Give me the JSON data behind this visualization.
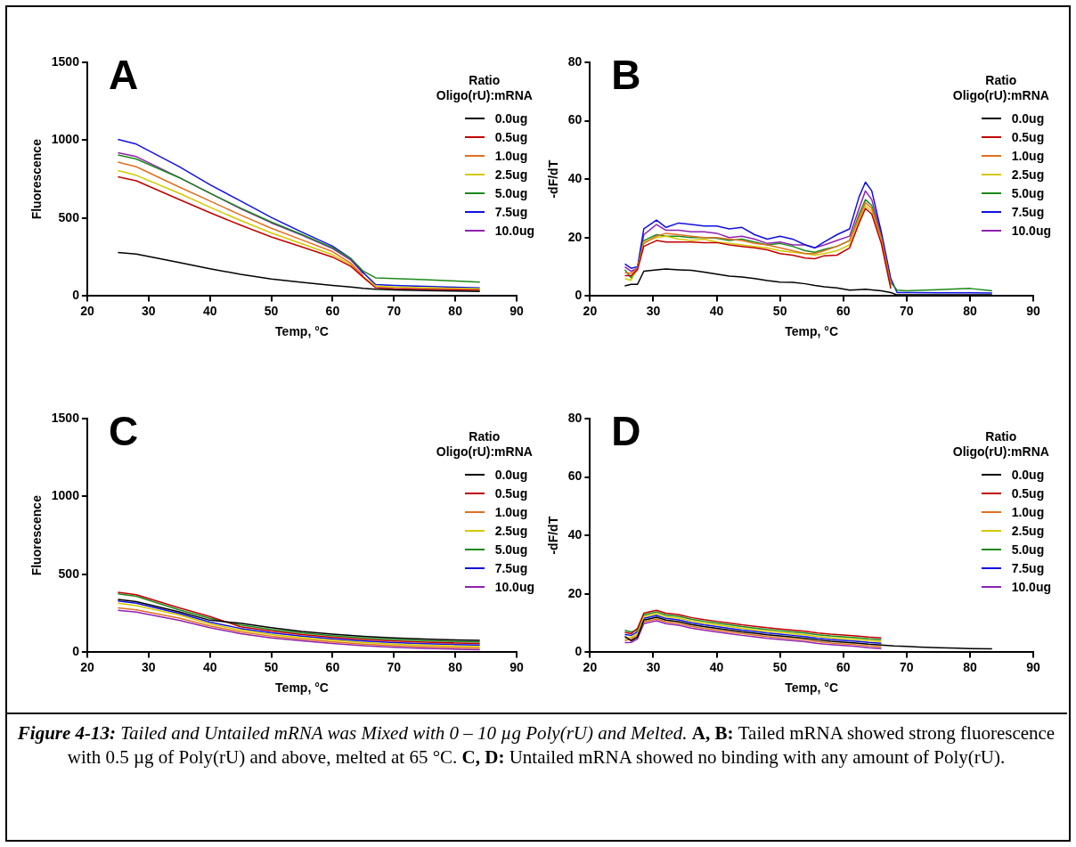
{
  "chart_data": [
    {
      "type": "line",
      "title": "A",
      "xlabel": "Temp, °C",
      "ylabel": "Fluorescence",
      "legend_title": "Ratio\nOligo(rU):mRNA",
      "legend": "top right",
      "grid": false,
      "marker": "none",
      "line_style": "solid",
      "xlim": [
        20,
        90
      ],
      "xticks": [
        20,
        30,
        40,
        50,
        60,
        70,
        80,
        90
      ],
      "ylim": [
        0,
        1500
      ],
      "yticks": [
        0,
        500,
        1000,
        1500
      ],
      "x": [
        25,
        28,
        35,
        40,
        45,
        50,
        55,
        60,
        63,
        65,
        67,
        70,
        75,
        80,
        84
      ],
      "series": [
        {
          "name": "0.0ug",
          "color": "#000000",
          "values": [
            280,
            270,
            215,
            175,
            140,
            110,
            88,
            68,
            58,
            50,
            44,
            39,
            35,
            32,
            30
          ]
        },
        {
          "name": "0.5ug",
          "color": "#c00000",
          "values": [
            765,
            740,
            620,
            535,
            455,
            380,
            315,
            250,
            190,
            120,
            54,
            48,
            44,
            41,
            38
          ]
        },
        {
          "name": "1.0ug",
          "color": "#e07020",
          "values": [
            860,
            830,
            700,
            610,
            520,
            435,
            360,
            285,
            210,
            130,
            null,
            null,
            null,
            null,
            null
          ]
        },
        {
          "name": "2.5ug",
          "color": "#d4c800",
          "values": [
            805,
            775,
            660,
            570,
            485,
            405,
            335,
            265,
            200,
            125,
            64,
            58,
            54,
            50,
            47
          ]
        },
        {
          "name": "5.0ug",
          "color": "#1a8a1a",
          "values": [
            905,
            880,
            760,
            660,
            565,
            475,
            395,
            310,
            240,
            160,
            117,
            112,
            105,
            97,
            90
          ]
        },
        {
          "name": "7.5ug",
          "color": "#1010e0",
          "values": [
            1005,
            975,
            830,
            715,
            610,
            505,
            410,
            320,
            240,
            150,
            74,
            68,
            62,
            57,
            53
          ]
        },
        {
          "name": "10.0ug",
          "color": "#9020b0",
          "values": [
            920,
            895,
            760,
            660,
            560,
            470,
            390,
            305,
            230,
            145,
            null,
            null,
            null,
            null,
            null
          ]
        }
      ],
      "annotations": [
        "Figure 4-13:",
        "Tailed and Untailed mRNA was Mixed with 0 – 10 µg Poly(rU) and Melted.",
        "A, B:",
        "Tailed mRNA showed strong fluorescence with 0.5 µg of Poly(rU) and above, melted at 65 °C.",
        "C, D:",
        "Untailed mRNA showed no binding with any amount of Poly(rU)."
      ]
    },
    {
      "type": "line",
      "title": "B",
      "xlabel": "Temp, °C",
      "ylabel": "-dF/dT",
      "legend_title": "Ratio\nOligo(rU):mRNA",
      "legend": "top right",
      "grid": false,
      "marker": "none",
      "line_style": "solid",
      "xlim": [
        20,
        90
      ],
      "xticks": [
        20,
        30,
        40,
        50,
        60,
        70,
        80,
        90
      ],
      "ylim": [
        0,
        80
      ],
      "yticks": [
        0,
        20,
        40,
        60,
        80
      ],
      "x": [
        25.5,
        26.5,
        27.5,
        28.5,
        30.5,
        32,
        34,
        36,
        38,
        40,
        42,
        44,
        46,
        48,
        50,
        52,
        54,
        55.5,
        57,
        59,
        61,
        62.5,
        63.5,
        64.5,
        66,
        67.5,
        68.5,
        70,
        75,
        80,
        83.5
      ],
      "series": [
        {
          "name": "0.0ug",
          "color": "#000000",
          "values": [
            3.5,
            4,
            4,
            8.5,
            9,
            9.3,
            9,
            8.8,
            8.2,
            7.5,
            6.8,
            6.5,
            6,
            5.3,
            4.8,
            4.7,
            4.2,
            3.6,
            3.2,
            2.8,
            2,
            2.2,
            2.3,
            2.1,
            1.8,
            1.2,
            0.4,
            0.4,
            0.4,
            0.4,
            0.4
          ]
        },
        {
          "name": "0.5ug",
          "color": "#c00000",
          "values": [
            7,
            7,
            9,
            17,
            19,
            18.5,
            18.5,
            18.5,
            18.3,
            18.3,
            17.5,
            17,
            16.5,
            15.8,
            14.5,
            14,
            13,
            12.8,
            13.8,
            14,
            16.5,
            25,
            30,
            28,
            18,
            2.5,
            null,
            null,
            null,
            null,
            null
          ]
        },
        {
          "name": "1.0ug",
          "color": "#e07020",
          "values": [
            8,
            7.8,
            9.5,
            18,
            20.5,
            21.5,
            21,
            20.5,
            20,
            20,
            19.5,
            19,
            18,
            17.5,
            16.5,
            15.5,
            14.5,
            14.5,
            15.5,
            17,
            19,
            27,
            32,
            30,
            20,
            3.9,
            null,
            null,
            null,
            null,
            null
          ]
        },
        {
          "name": "2.5ug",
          "color": "#d4c800",
          "values": [
            6,
            5.4,
            9.5,
            18.5,
            20,
            20.5,
            19.5,
            19,
            19.5,
            18.5,
            18,
            17.5,
            17,
            16.5,
            15.5,
            15,
            14.5,
            14,
            14.5,
            15.5,
            17.5,
            26,
            31,
            29,
            19,
            3.2,
            null,
            null,
            null,
            null,
            null
          ]
        },
        {
          "name": "5.0ug",
          "color": "#1a8a1a",
          "values": [
            9,
            6.2,
            9.5,
            19,
            21,
            20.5,
            20.5,
            20,
            20,
            19.8,
            19,
            19.5,
            18.5,
            17.5,
            18,
            17,
            15.5,
            15,
            16,
            17,
            19,
            28,
            33,
            31,
            20,
            4.6,
            2,
            1.8,
            2.2,
            2.6,
            1.8
          ]
        },
        {
          "name": "7.5ug",
          "color": "#1010e0",
          "values": [
            11,
            9.5,
            10,
            23,
            26,
            23.5,
            25,
            24.5,
            24,
            24,
            23,
            23.5,
            21,
            19.5,
            20.5,
            19.5,
            17.5,
            16.5,
            18.5,
            21,
            23,
            34,
            39,
            36,
            22,
            6,
            1.2,
            1.2,
            1.1,
            1.1,
            1
          ]
        },
        {
          "name": "10.0ug",
          "color": "#9020b0",
          "values": [
            10,
            8.5,
            9.5,
            21,
            24.5,
            22.5,
            22.5,
            22,
            22,
            21.5,
            20,
            20.5,
            19.5,
            18,
            18.5,
            17.5,
            17.5,
            16.5,
            17.5,
            19,
            20.5,
            30,
            36,
            33,
            21,
            5.3,
            null,
            null,
            null,
            null,
            null
          ]
        }
      ]
    },
    {
      "type": "line",
      "title": "C",
      "xlabel": "Temp, °C",
      "ylabel": "Fluorescence",
      "legend_title": "Ratio\nOligo(rU):mRNA",
      "legend": "top right",
      "grid": false,
      "marker": "none",
      "line_style": "solid",
      "xlim": [
        20,
        90
      ],
      "xticks": [
        20,
        30,
        40,
        50,
        60,
        70,
        80,
        90
      ],
      "ylim": [
        0,
        1500
      ],
      "yticks": [
        0,
        500,
        1000,
        1500
      ],
      "x": [
        25,
        28,
        35,
        40,
        45,
        50,
        55,
        60,
        65,
        70,
        75,
        80,
        84
      ],
      "series": [
        {
          "name": "0.0ug",
          "color": "#000000",
          "values": [
            340,
            325,
            260,
            206,
            186,
            158,
            134,
            116,
            102,
            92,
            85,
            80,
            76
          ]
        },
        {
          "name": "0.5ug",
          "color": "#c00000",
          "values": [
            385,
            370,
            285,
            230,
            164,
            136,
            114,
            96,
            82,
            72,
            65,
            60,
            56
          ]
        },
        {
          "name": "1.0ug",
          "color": "#e07020",
          "values": [
            285,
            272,
            220,
            170,
            131,
            103,
            84,
            66,
            52,
            42,
            35,
            30,
            26
          ]
        },
        {
          "name": "2.5ug",
          "color": "#d4c800",
          "values": [
            315,
            300,
            240,
            182,
            142,
            114,
            94,
            76,
            62,
            52,
            45,
            40,
            36
          ]
        },
        {
          "name": "5.0ug",
          "color": "#1a8a1a",
          "values": [
            375,
            360,
            272,
            218,
            175,
            147,
            124,
            106,
            92,
            82,
            75,
            70,
            66
          ]
        },
        {
          "name": "7.5ug",
          "color": "#1010e0",
          "values": [
            330,
            315,
            250,
            194,
            153,
            125,
            104,
            86,
            72,
            62,
            55,
            50,
            46
          ]
        },
        {
          "name": "10.0ug",
          "color": "#9020b0",
          "values": [
            270,
            258,
            205,
            158,
            120,
            92,
            74,
            56,
            42,
            32,
            25,
            20,
            16
          ]
        }
      ]
    },
    {
      "type": "line",
      "title": "D",
      "xlabel": "Temp, °C",
      "ylabel": "-dF/dT",
      "legend_title": "Ratio\nOligo(rU):mRNA",
      "legend": "top right",
      "grid": false,
      "marker": "none",
      "line_style": "solid",
      "xlim": [
        20,
        90
      ],
      "xticks": [
        20,
        30,
        40,
        50,
        60,
        70,
        80,
        90
      ],
      "ylim": [
        0,
        80
      ],
      "yticks": [
        0,
        20,
        40,
        60,
        80
      ],
      "x": [
        25.5,
        26.5,
        27.5,
        28.5,
        29.5,
        30.5,
        32,
        34,
        36,
        38,
        40,
        42,
        44,
        46,
        48,
        50,
        52,
        54,
        56,
        58,
        60,
        62,
        64,
        66,
        68,
        70,
        72,
        75,
        78,
        80,
        83.5
      ],
      "series": [
        {
          "name": "0.0ug",
          "color": "#000000",
          "values": [
            5.4,
            4,
            5.2,
            11,
            11.5,
            12,
            11,
            10.5,
            9.5,
            8.8,
            8.2,
            7.6,
            7,
            6.5,
            6,
            5.6,
            5.2,
            4.8,
            4.2,
            3.8,
            3.5,
            3.2,
            2.8,
            2.5,
            2.2,
            2,
            1.8,
            1.6,
            1.4,
            1.3,
            1.2
          ]
        },
        {
          "name": "0.5ug",
          "color": "#c00000",
          "values": [
            6.8,
            6.4,
            8.2,
            13.4,
            13.9,
            14.4,
            13.4,
            12.9,
            11.9,
            11.2,
            10.6,
            10,
            9.4,
            8.9,
            8.4,
            8,
            7.6,
            7.2,
            6.6,
            6.2,
            5.9,
            5.6,
            5.2,
            4.9,
            null,
            null,
            null,
            null,
            null,
            null,
            null
          ]
        },
        {
          "name": "1.0ug",
          "color": "#e07020",
          "values": [
            4,
            4.6,
            5.8,
            10.4,
            10.9,
            11.4,
            10.4,
            9.9,
            8.9,
            8.2,
            7.6,
            7,
            6.4,
            5.9,
            5.4,
            5,
            4.6,
            4.2,
            3.6,
            3.2,
            2.9,
            2.6,
            2.2,
            1.9,
            null,
            null,
            null,
            null,
            null,
            null,
            null
          ]
        },
        {
          "name": "2.5ug",
          "color": "#d4c800",
          "values": [
            4.7,
            5.2,
            6.4,
            12.2,
            12.7,
            13.2,
            12.2,
            11.7,
            10.7,
            10,
            9.4,
            8.8,
            8.2,
            7.7,
            7.2,
            6.8,
            6.4,
            6,
            5.4,
            5,
            4.7,
            4.4,
            4,
            3.7,
            null,
            null,
            null,
            null,
            null,
            null,
            null
          ]
        },
        {
          "name": "5.0ug",
          "color": "#1a8a1a",
          "values": [
            7.5,
            7,
            7.6,
            12.8,
            13.3,
            13.8,
            12.8,
            12.3,
            11.3,
            10.6,
            10,
            9.4,
            8.8,
            8.3,
            7.8,
            7.4,
            7,
            6.6,
            6,
            5.6,
            5.3,
            5,
            4.6,
            4.3,
            null,
            null,
            null,
            null,
            null,
            null,
            null
          ]
        },
        {
          "name": "7.5ug",
          "color": "#1010e0",
          "values": [
            6.1,
            5.8,
            7,
            11.6,
            12.1,
            12.6,
            11.6,
            11.1,
            10.1,
            9.4,
            8.8,
            8.2,
            7.6,
            7.1,
            6.6,
            6.2,
            5.8,
            5.4,
            4.8,
            4.4,
            4.1,
            3.8,
            3.4,
            3.1,
            null,
            null,
            null,
            null,
            null,
            null,
            null
          ]
        },
        {
          "name": "10.0ug",
          "color": "#9020b0",
          "values": [
            3.3,
            3.4,
            4.6,
            9.8,
            10.3,
            10.8,
            9.8,
            9.3,
            8.3,
            7.6,
            7,
            6.4,
            5.8,
            5.3,
            4.8,
            4.4,
            4,
            3.6,
            3,
            2.6,
            2.3,
            2,
            1.6,
            1.3,
            null,
            null,
            null,
            null,
            null,
            null,
            null
          ]
        }
      ]
    }
  ]
}
